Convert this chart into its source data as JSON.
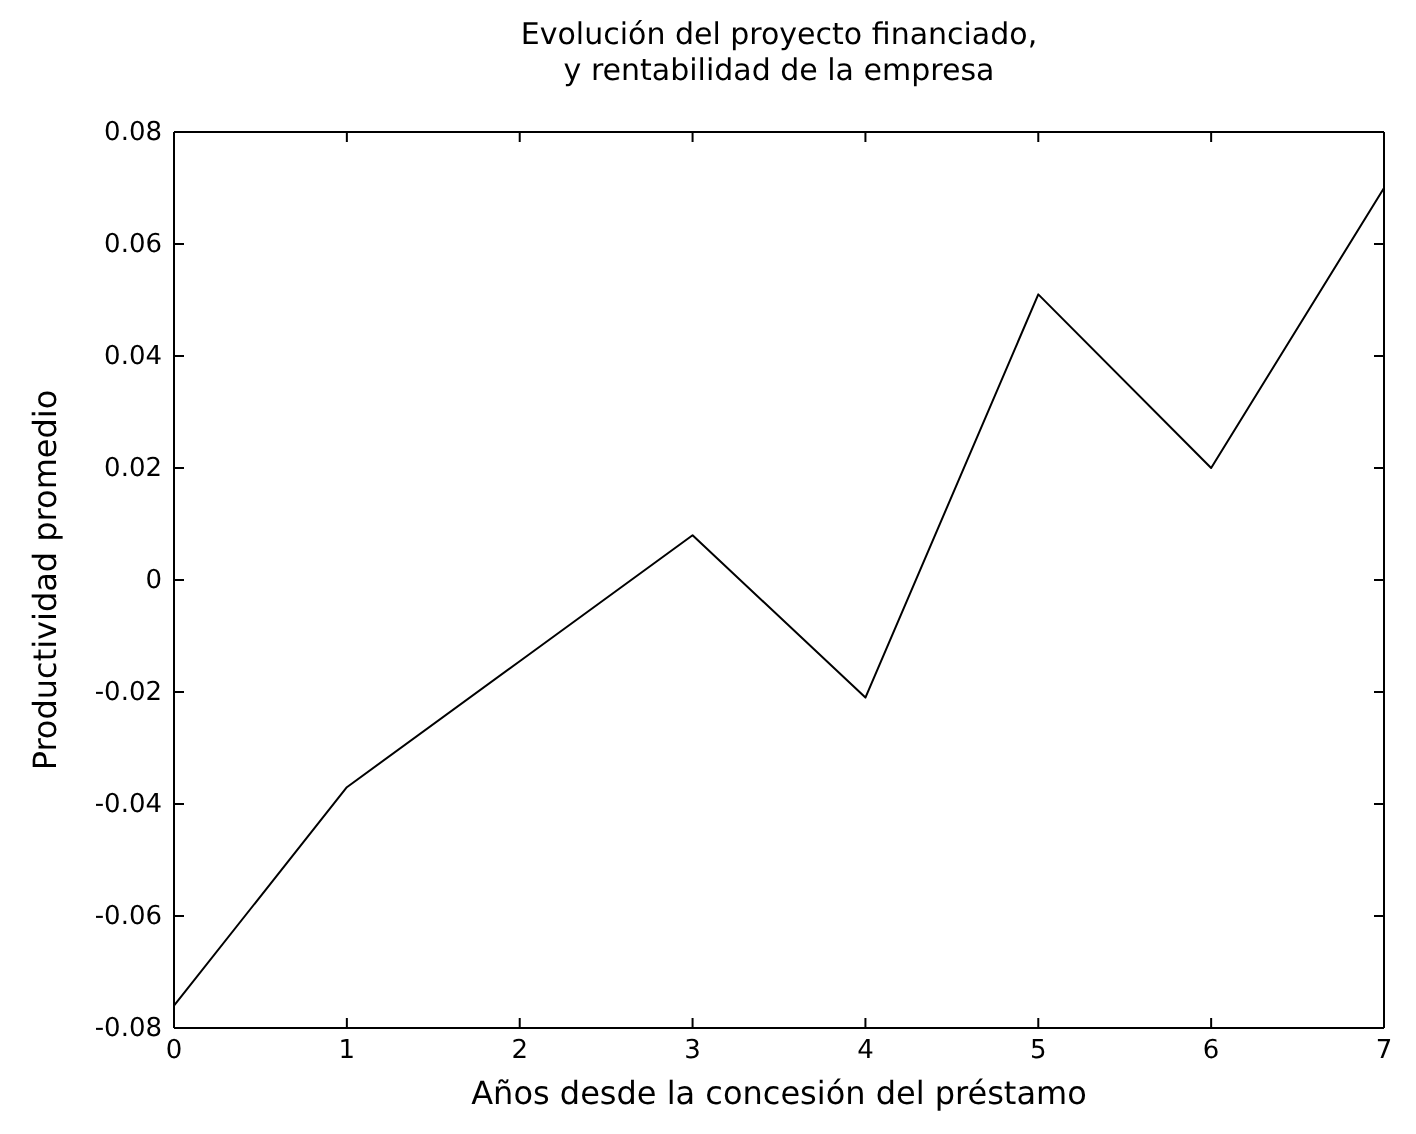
{
  "chart_data": {
    "type": "line",
    "title": "Evolución del proyecto financiado,\ny rentabilidad de la empresa",
    "xlabel": "Años desde la concesión del préstamo",
    "ylabel": "Productividad promedio",
    "x": [
      0,
      1,
      2,
      3,
      4,
      5,
      6,
      7
    ],
    "series": [
      {
        "color": "#000000",
        "values": [
          -0.076,
          -0.037,
          -0.0145,
          0.008,
          -0.021,
          0.051,
          0.02,
          0.07
        ]
      }
    ],
    "xlim": [
      0,
      7
    ],
    "xticks": [
      0,
      1,
      2,
      3,
      4,
      5,
      6,
      7
    ],
    "ylim": [
      -0.08,
      0.08
    ],
    "yticks": [
      {
        "value": -0.08,
        "label": "-0.08"
      },
      {
        "value": -0.06,
        "label": "-0.06"
      },
      {
        "value": -0.04,
        "label": "-0.04"
      },
      {
        "value": -0.02,
        "label": "-0.02"
      },
      {
        "value": 0,
        "label": "0"
      },
      {
        "value": 0.02,
        "label": "0.02"
      },
      {
        "value": 0.04,
        "label": "0.04"
      },
      {
        "value": 0.06,
        "label": "0.06"
      },
      {
        "value": 0.08,
        "label": "0.08"
      }
    ],
    "grid": false,
    "marker": "none",
    "line_style": "solid"
  }
}
